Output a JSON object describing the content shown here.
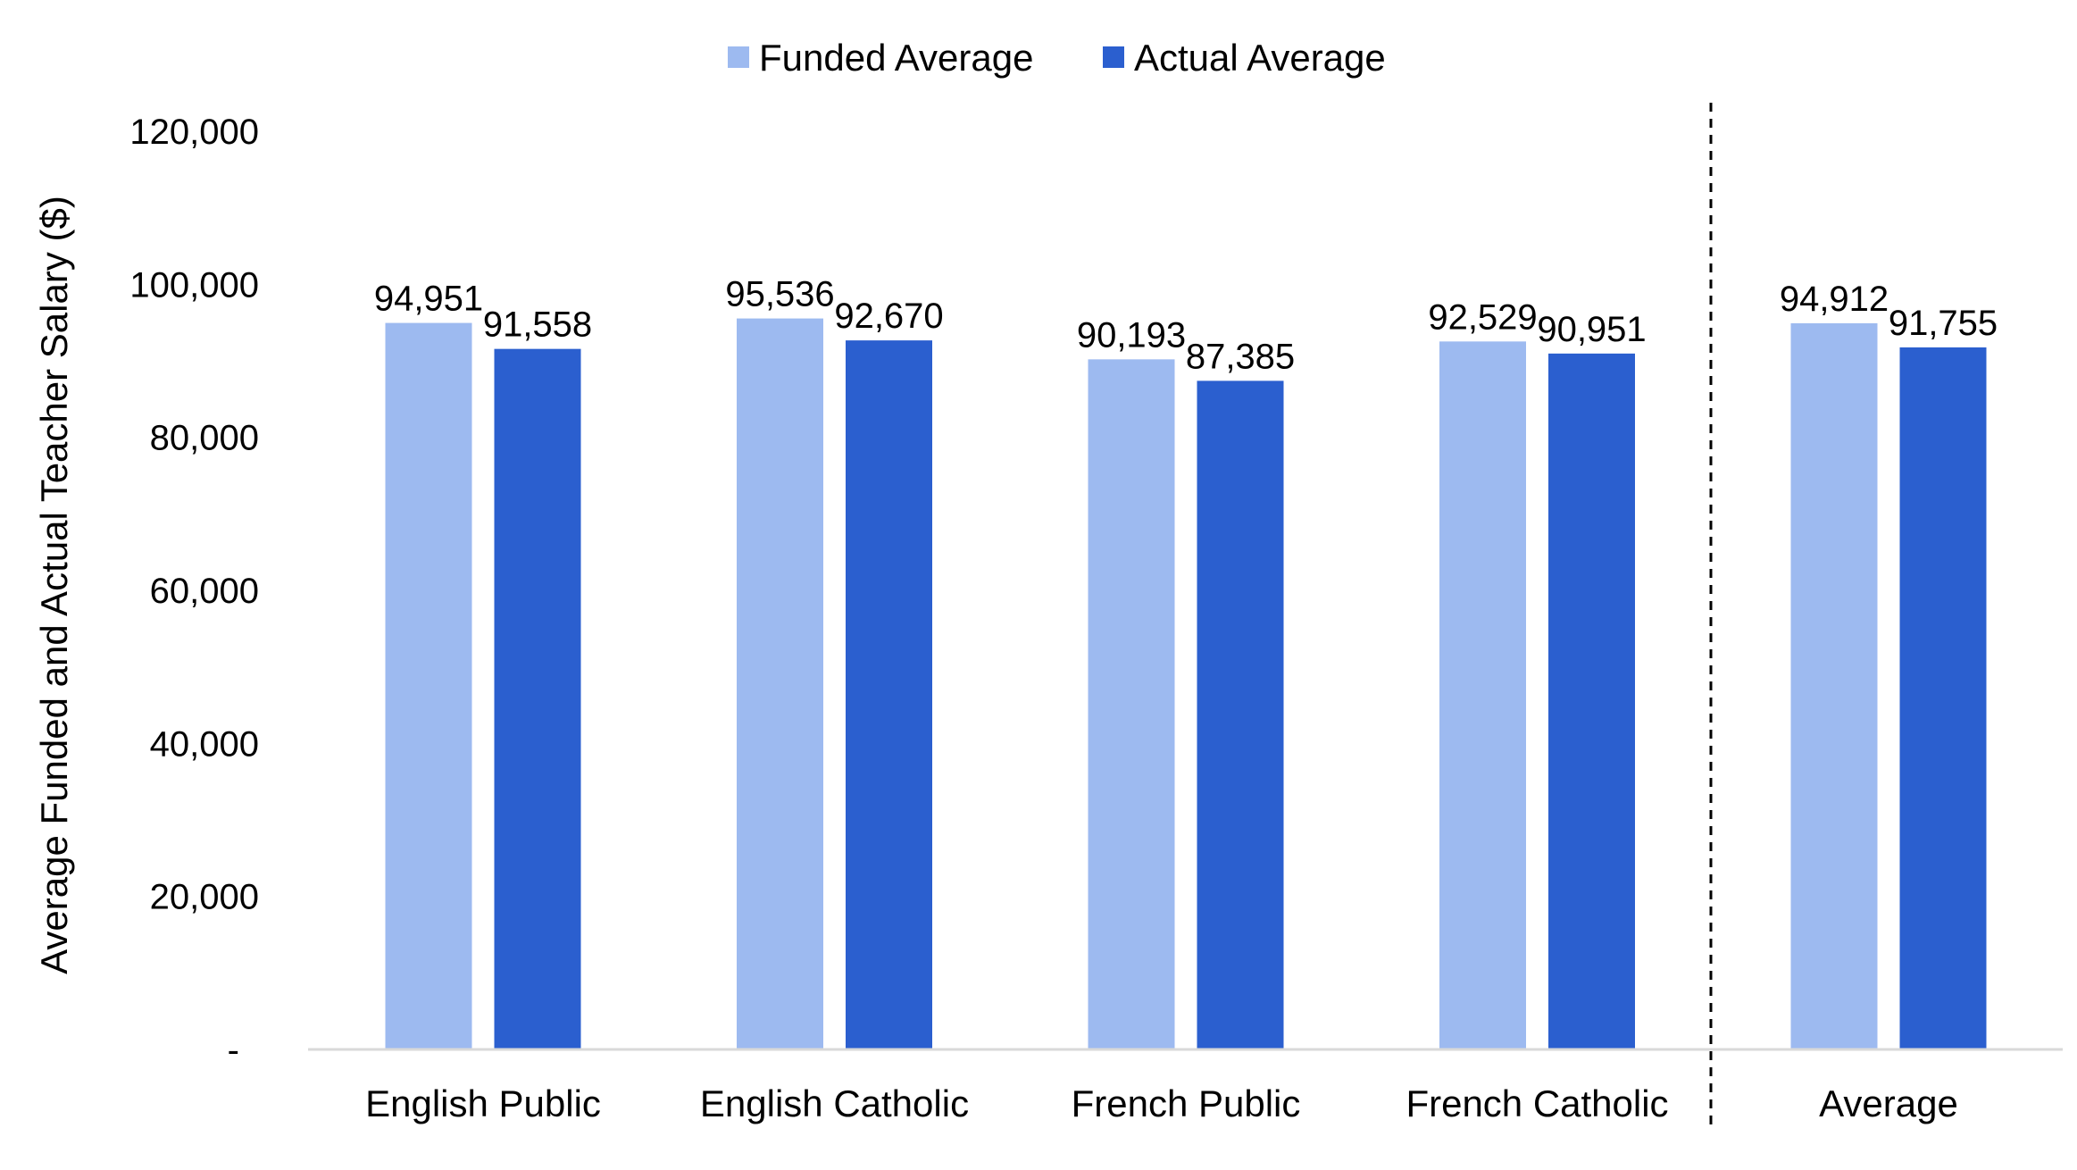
{
  "chart_data": {
    "type": "bar",
    "categories": [
      "English Public",
      "English Catholic",
      "French Public",
      "French Catholic",
      "Average"
    ],
    "series": [
      {
        "name": "Funded Average",
        "color": "#9dbaf0",
        "values": [
          94951,
          95536,
          90193,
          92529,
          94912
        ],
        "labels": [
          "94,951",
          "95,536",
          "90,193",
          "92,529",
          "94,912"
        ]
      },
      {
        "name": "Actual Average",
        "color": "#2b5fcf",
        "values": [
          91558,
          92670,
          87385,
          90951,
          91755
        ],
        "labels": [
          "91,558",
          "92,670",
          "87,385",
          "90,951",
          "91,755"
        ]
      }
    ],
    "title": "",
    "xlabel": "",
    "ylabel": "Average Funded and Actual Teacher Salary ($)",
    "ylim": [
      0,
      120000
    ],
    "yticks": [
      {
        "value": 0,
        "label": "-"
      },
      {
        "value": 20000,
        "label": "20,000"
      },
      {
        "value": 40000,
        "label": "40,000"
      },
      {
        "value": 60000,
        "label": "60,000"
      },
      {
        "value": 80000,
        "label": "80,000"
      },
      {
        "value": 100000,
        "label": "100,000"
      },
      {
        "value": 120000,
        "label": "120,000"
      }
    ],
    "grid": false,
    "legend_position": "top-center",
    "separator": "dashed line before Average"
  }
}
